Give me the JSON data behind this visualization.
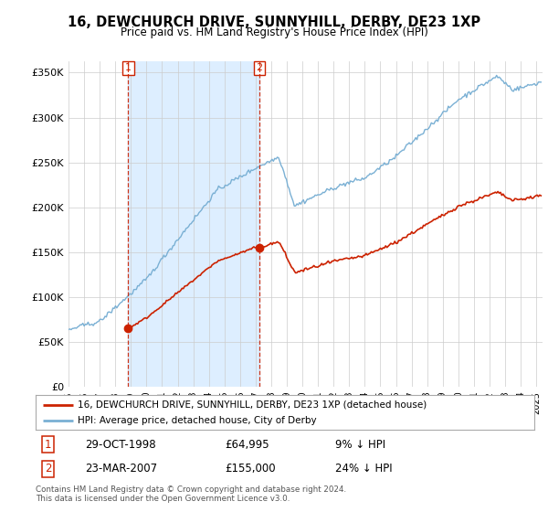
{
  "title": "16, DEWCHURCH DRIVE, SUNNYHILL, DERBY, DE23 1XP",
  "subtitle": "Price paid vs. HM Land Registry's House Price Index (HPI)",
  "legend_line1": "16, DEWCHURCH DRIVE, SUNNYHILL, DERBY, DE23 1XP (detached house)",
  "legend_line2": "HPI: Average price, detached house, City of Derby",
  "footnote": "Contains HM Land Registry data © Crown copyright and database right 2024.\nThis data is licensed under the Open Government Licence v3.0.",
  "sale1_date": "29-OCT-1998",
  "sale1_price": 64995,
  "sale1_hpi_pct": "9% ↓ HPI",
  "sale2_date": "23-MAR-2007",
  "sale2_price": 155000,
  "sale2_hpi_pct": "24% ↓ HPI",
  "hpi_color": "#7ab0d4",
  "price_color": "#cc2200",
  "shade_color": "#ddeeff",
  "ylim_min": 0,
  "ylim_max": 362500,
  "background_color": "#ffffff",
  "grid_color": "#cccccc"
}
